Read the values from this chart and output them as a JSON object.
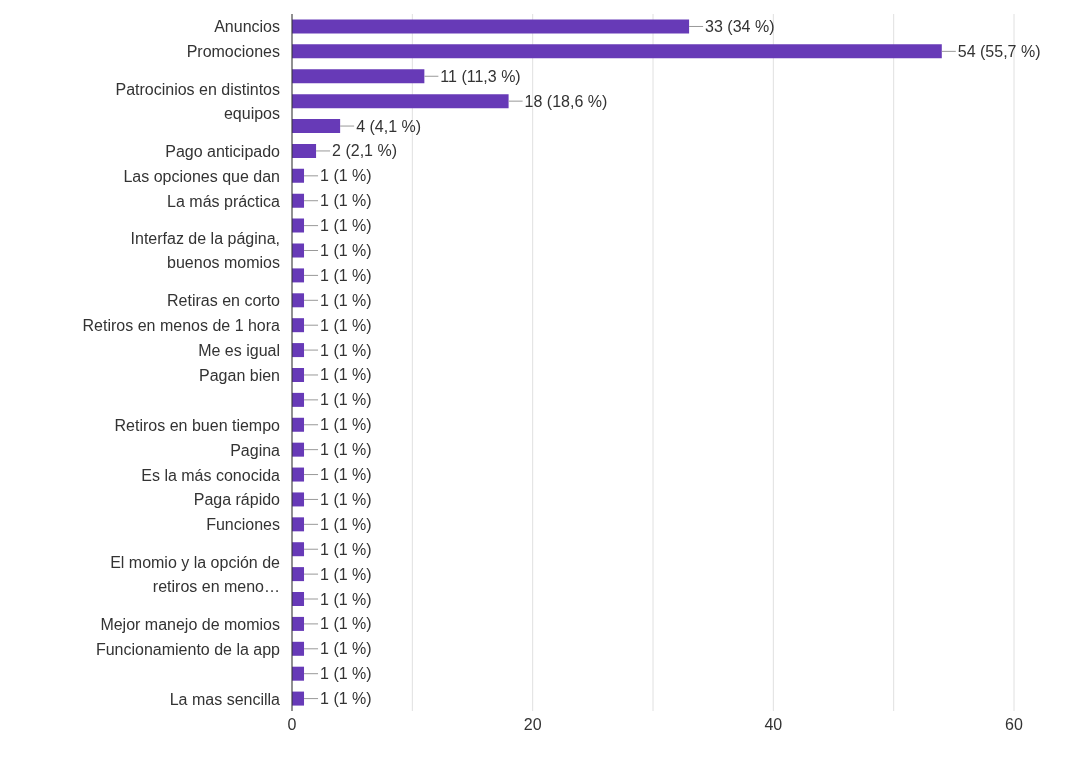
{
  "chart_data": {
    "type": "bar",
    "orientation": "horizontal",
    "categories": [
      "Anuncios",
      "Promociones",
      null,
      "Patrocinios en distintos equipos",
      null,
      "Pago anticipado",
      "Las opciones que dan",
      "La más práctica",
      null,
      "Interfaz de la página, buenos momios",
      null,
      "Retiras en corto",
      "Retiros en menos de 1 hora",
      "Me es igual",
      "Pagan bien",
      null,
      "Retiros en buen tiempo",
      "Pagina",
      "Es la más conocida",
      "Paga rápido",
      "Funciones",
      null,
      "El momio y la opción de retiros en meno…",
      null,
      "Mejor manejo de momios",
      "Funcionamiento de la app",
      null,
      "La mas sencilla"
    ],
    "values": [
      33,
      54,
      11,
      18,
      4,
      2,
      1,
      1,
      1,
      1,
      1,
      1,
      1,
      1,
      1,
      1,
      1,
      1,
      1,
      1,
      1,
      1,
      1,
      1,
      1,
      1,
      1,
      1
    ],
    "value_labels": [
      "33 (34 %)",
      "54 (55,7 %)",
      "11 (11,3 %)",
      "18 (18,6 %)",
      "4 (4,1 %)",
      "2 (2,1 %)",
      "1 (1 %)",
      "1 (1 %)",
      "1 (1 %)",
      "1 (1 %)",
      "1 (1 %)",
      "1 (1 %)",
      "1 (1 %)",
      "1 (1 %)",
      "1 (1 %)",
      "1 (1 %)",
      "1 (1 %)",
      "1 (1 %)",
      "1 (1 %)",
      "1 (1 %)",
      "1 (1 %)",
      "1 (1 %)",
      "1 (1 %)",
      "1 (1 %)",
      "1 (1 %)",
      "1 (1 %)",
      "1 (1 %)",
      "1 (1 %)"
    ],
    "color": "#673ab7",
    "xlim": [
      0,
      60
    ],
    "xticks": [
      0,
      {
        "value": 10,
        "label": null
      },
      20,
      {
        "value": 30,
        "label": null
      },
      40,
      {
        "value": 50,
        "label": null
      },
      60
    ],
    "grid": "x"
  }
}
